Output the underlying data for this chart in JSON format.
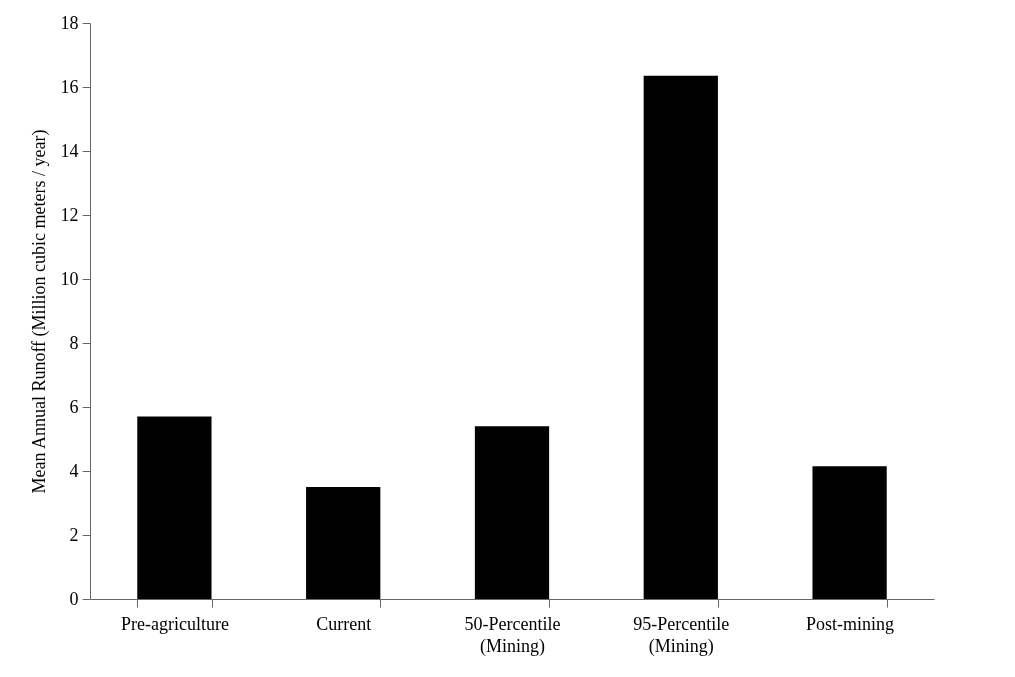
{
  "chart_data": {
    "type": "bar",
    "ylabel": "Mean Annual Runoff (Million cubic meters / year)",
    "categories": [
      "Pre-agriculture",
      "Current",
      "50-Percentile\n(Mining)",
      "95-Percentile\n(Mining)",
      "Post-mining"
    ],
    "values": [
      5.7,
      3.5,
      5.4,
      16.35,
      4.15
    ],
    "color": "#000000",
    "ylim": [
      0,
      18
    ],
    "yticks": [
      0,
      2,
      4,
      6,
      8,
      10,
      12,
      14,
      16,
      18
    ],
    "grid": false
  }
}
